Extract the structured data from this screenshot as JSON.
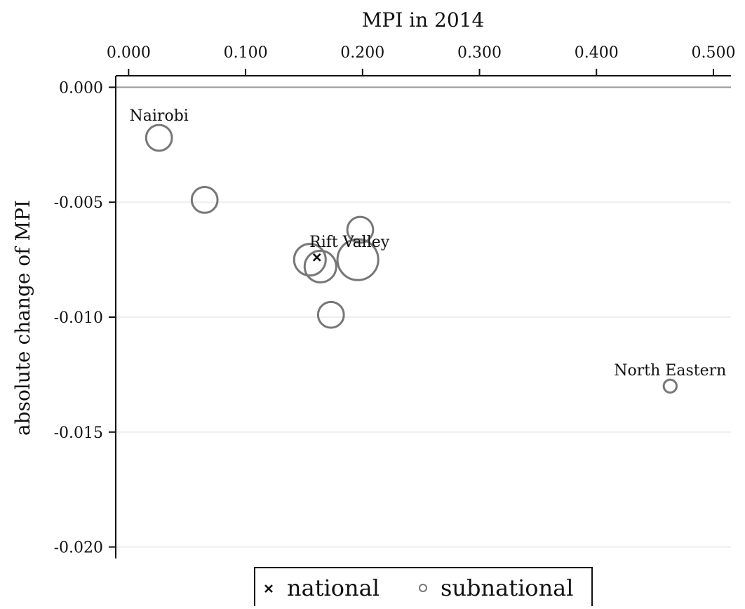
{
  "chart_data": {
    "type": "scatter",
    "title": "",
    "xlabel": "MPI in 2014",
    "ylabel": "absolute change of MPI",
    "x_axis_position": "top",
    "xlim": [
      -0.011,
      0.515
    ],
    "ylim": [
      -0.0205,
      0.0005
    ],
    "x_ticks": [
      0.0,
      0.1,
      0.2,
      0.3,
      0.4,
      0.5
    ],
    "x_tick_labels": [
      "0.000",
      "0.100",
      "0.200",
      "0.300",
      "0.400",
      "0.500"
    ],
    "y_ticks": [
      0.0,
      -0.005,
      -0.01,
      -0.015,
      -0.02
    ],
    "y_tick_labels": [
      "0.000",
      "-0.005",
      "-0.010",
      "-0.015",
      "-0.020"
    ],
    "grid": "horizontal",
    "zero_line": true,
    "legend_position": "bottom",
    "series": [
      {
        "name": "national",
        "marker": "x",
        "points": [
          {
            "x": 0.161,
            "y": -0.0074,
            "label": ""
          }
        ]
      },
      {
        "name": "subnational",
        "marker": "hollow-circle",
        "points": [
          {
            "x": 0.026,
            "y": -0.0022,
            "size": 2,
            "label": "Nairobi"
          },
          {
            "x": 0.065,
            "y": -0.0049,
            "size": 2,
            "label": ""
          },
          {
            "x": 0.198,
            "y": -0.0062,
            "size": 2,
            "label": ""
          },
          {
            "x": 0.155,
            "y": -0.0075,
            "size": 3,
            "label": ""
          },
          {
            "x": 0.164,
            "y": -0.0078,
            "size": 3,
            "label": ""
          },
          {
            "x": 0.196,
            "y": -0.0075,
            "size": 5,
            "label": "Rift Valley"
          },
          {
            "x": 0.173,
            "y": -0.0099,
            "size": 2,
            "label": ""
          },
          {
            "x": 0.463,
            "y": -0.013,
            "size": 0.5,
            "label": "North Eastern"
          }
        ]
      }
    ],
    "legend": {
      "national": "national",
      "subnational": "subnational"
    },
    "colors": {
      "subnational_marker": "#777777",
      "national_marker": "#111111",
      "grid": "#eeeeee",
      "zero_line": "#999999",
      "axis": "#111111"
    }
  }
}
